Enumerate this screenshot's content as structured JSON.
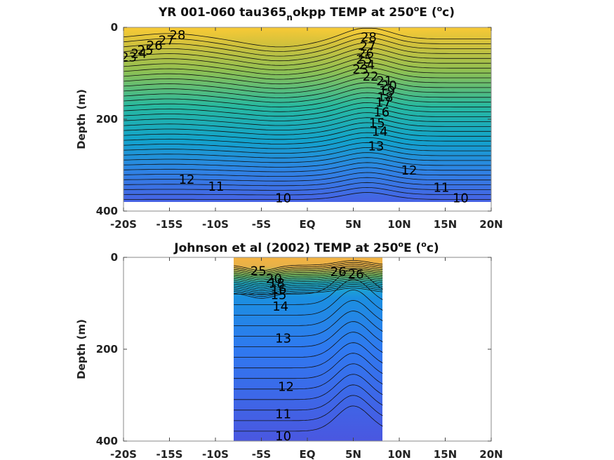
{
  "chart_data": [
    {
      "type": "contour",
      "title_main": "YR 001-060 tau365",
      "title_sub": "n",
      "title_rest": "okpp TEMP at 250",
      "title_deg": "o",
      "title_unit_pre": "E (",
      "title_unit_deg": "o",
      "title_unit_post": "c)",
      "ylabel": "Depth (m)",
      "xlim": [
        -20,
        20
      ],
      "ylim": [
        400,
        0
      ],
      "x_ticks": [
        -20,
        -15,
        -10,
        -5,
        0,
        5,
        10,
        15,
        20
      ],
      "x_tick_labels": [
        "-20S",
        "-15S",
        "-10S",
        "-5S",
        "EQ",
        "5N",
        "10N",
        "15N",
        "20N"
      ],
      "y_ticks": [
        0,
        200,
        400
      ],
      "y_tick_labels": [
        "0",
        "200",
        "400"
      ],
      "data_extent": {
        "x": [
          -20,
          20
        ],
        "depth": [
          0,
          380
        ]
      },
      "temp_range_c": [
        9,
        29
      ],
      "contour_labels": [
        {
          "text": "28",
          "x": -15,
          "depth": 15
        },
        {
          "text": "27",
          "x": -16.2,
          "depth": 27
        },
        {
          "text": "26",
          "x": -17.5,
          "depth": 38
        },
        {
          "text": "25",
          "x": -18.5,
          "depth": 48
        },
        {
          "text": "24",
          "x": -19.2,
          "depth": 56
        },
        {
          "text": "23",
          "x": -20.3,
          "depth": 63
        },
        {
          "text": "22",
          "x": -22.0,
          "depth": 73
        },
        {
          "text": "21",
          "x": -22,
          "depth": 110
        },
        {
          "text": "20",
          "x": -22,
          "depth": 140
        },
        {
          "text": "19",
          "x": -22,
          "depth": 165
        },
        {
          "text": "18",
          "x": -22,
          "depth": 190
        },
        {
          "text": "17",
          "x": -22,
          "depth": 215
        },
        {
          "text": "16",
          "x": -22,
          "depth": 240
        },
        {
          "text": "15",
          "x": -22,
          "depth": 265
        },
        {
          "text": "14",
          "x": -22,
          "depth": 290
        },
        {
          "text": "13",
          "x": -22,
          "depth": 315
        },
        {
          "text": "12",
          "x": -14,
          "depth": 330
        },
        {
          "text": "11",
          "x": -10.8,
          "depth": 345
        },
        {
          "text": "10",
          "x": -3.5,
          "depth": 370
        },
        {
          "text": "28",
          "x": 5.8,
          "depth": 20
        },
        {
          "text": "27",
          "x": 5.7,
          "depth": 40
        },
        {
          "text": "26",
          "x": 5.5,
          "depth": 55
        },
        {
          "text": "25",
          "x": 5.3,
          "depth": 68
        },
        {
          "text": "24",
          "x": 5.6,
          "depth": 80
        },
        {
          "text": "23",
          "x": 4.9,
          "depth": 90
        },
        {
          "text": "22",
          "x": 6.0,
          "depth": 105
        },
        {
          "text": "21",
          "x": 7.5,
          "depth": 115
        },
        {
          "text": "20",
          "x": 8.0,
          "depth": 125
        },
        {
          "text": "19",
          "x": 7.8,
          "depth": 137
        },
        {
          "text": "18",
          "x": 7.6,
          "depth": 150
        },
        {
          "text": "17",
          "x": 7.4,
          "depth": 162
        },
        {
          "text": "16",
          "x": 7.2,
          "depth": 183
        },
        {
          "text": "15",
          "x": 6.7,
          "depth": 207
        },
        {
          "text": "14",
          "x": 7.0,
          "depth": 225
        },
        {
          "text": "13",
          "x": 6.6,
          "depth": 257
        },
        {
          "text": "12",
          "x": 10.2,
          "depth": 310
        },
        {
          "text": "11",
          "x": 13.7,
          "depth": 347
        },
        {
          "text": "10",
          "x": 15.8,
          "depth": 370
        }
      ]
    },
    {
      "type": "contour",
      "title_main": "Johnson et al (2002) TEMP at 250",
      "title_deg": "o",
      "title_unit_pre": "E (",
      "title_unit_deg": "o",
      "title_unit_post": "c)",
      "ylabel": "Depth (m)",
      "xlim": [
        -20,
        20
      ],
      "ylim": [
        400,
        0
      ],
      "x_ticks": [
        -20,
        -15,
        -10,
        -5,
        0,
        5,
        10,
        15,
        20
      ],
      "x_tick_labels": [
        "-20S",
        "-15S",
        "-10S",
        "-5S",
        "EQ",
        "5N",
        "10N",
        "15N",
        "20N"
      ],
      "y_ticks": [
        0,
        200,
        400
      ],
      "y_tick_labels": [
        "0",
        "200",
        "400"
      ],
      "data_extent": {
        "x": [
          -8,
          8.2
        ],
        "depth": [
          0,
          400
        ]
      },
      "temp_range_c": [
        9,
        28
      ],
      "contour_labels": [
        {
          "text": "25",
          "x": -6.2,
          "depth": 28
        },
        {
          "text": "20",
          "x": -4.5,
          "depth": 45
        },
        {
          "text": "18",
          "x": -4.2,
          "depth": 55
        },
        {
          "text": "16",
          "x": -4.0,
          "depth": 68
        },
        {
          "text": "15",
          "x": -4.0,
          "depth": 80
        },
        {
          "text": "14",
          "x": -3.8,
          "depth": 105
        },
        {
          "text": "26",
          "x": 2.5,
          "depth": 30
        },
        {
          "text": "26",
          "x": 4.4,
          "depth": 35
        },
        {
          "text": "13",
          "x": -3.5,
          "depth": 175
        },
        {
          "text": "12",
          "x": -3.2,
          "depth": 280
        },
        {
          "text": "11",
          "x": -3.5,
          "depth": 340
        },
        {
          "text": "10",
          "x": -3.5,
          "depth": 388
        }
      ]
    }
  ]
}
